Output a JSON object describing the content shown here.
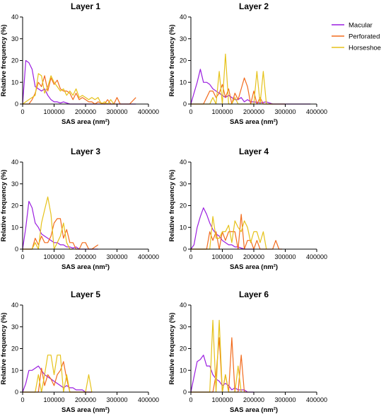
{
  "legend": [
    {
      "name": "Macular",
      "color": "#9B1FE0"
    },
    {
      "name": "Perforated",
      "color": "#F26B1D"
    },
    {
      "name": "Horseshoe",
      "color": "#E6C21A"
    }
  ],
  "chart_data": [
    {
      "type": "line",
      "title": "Layer 1",
      "xlabel": "SAS area (nm²)",
      "ylabel": "Relative frequency (%)",
      "xlim": [
        0,
        400000
      ],
      "ylim": [
        0,
        40
      ],
      "xticks": [
        "0",
        "100000",
        "200000",
        "300000",
        "400000"
      ],
      "yticks": [
        "0",
        "10",
        "20",
        "30",
        "40"
      ],
      "series": [
        {
          "name": "Macular",
          "x": [
            0,
            10000,
            20000,
            30000,
            40000,
            50000,
            60000,
            70000,
            80000,
            90000,
            100000,
            110000,
            120000,
            130000,
            140000,
            150000,
            160000,
            180000,
            200000,
            250000,
            300000,
            360000
          ],
          "y": [
            0,
            20,
            19,
            16,
            8,
            7,
            6,
            7,
            4,
            2,
            1,
            1,
            0.5,
            1,
            0.5,
            0,
            0,
            0,
            0,
            0,
            0,
            0
          ]
        },
        {
          "name": "Perforated",
          "x": [
            0,
            20000,
            30000,
            40000,
            50000,
            60000,
            70000,
            80000,
            90000,
            100000,
            110000,
            120000,
            130000,
            140000,
            150000,
            160000,
            170000,
            180000,
            190000,
            200000,
            210000,
            220000,
            230000,
            240000,
            260000,
            270000,
            280000,
            290000,
            300000,
            310000,
            320000,
            340000,
            360000
          ],
          "y": [
            0,
            0,
            2,
            5,
            10,
            8,
            13,
            6,
            12,
            9,
            11,
            7,
            6,
            6,
            5,
            2,
            5,
            2,
            3,
            2,
            1,
            1,
            0,
            1,
            0,
            2,
            0,
            0,
            3,
            0,
            0,
            0,
            3
          ]
        },
        {
          "name": "Horseshoe",
          "x": [
            0,
            20000,
            30000,
            40000,
            50000,
            60000,
            70000,
            80000,
            90000,
            100000,
            110000,
            120000,
            130000,
            140000,
            150000,
            160000,
            170000,
            180000,
            190000,
            200000,
            210000,
            220000,
            230000,
            240000,
            250000,
            260000,
            270000,
            280000,
            290000,
            300000
          ],
          "y": [
            0,
            2,
            3,
            4,
            14,
            13,
            5,
            8,
            13,
            10,
            8,
            6,
            7,
            4,
            6,
            4,
            7,
            3,
            4,
            3,
            2,
            3,
            2,
            3,
            0,
            1,
            0,
            2,
            0,
            0
          ]
        }
      ]
    },
    {
      "type": "line",
      "title": "Layer 2",
      "xlabel": "SAS area (nm²)",
      "ylabel": "Relative frequency (%)",
      "xlim": [
        0,
        400000
      ],
      "ylim": [
        0,
        40
      ],
      "xticks": [
        "0",
        "100000",
        "200000",
        "300000",
        "400000"
      ],
      "yticks": [
        "0",
        "10",
        "20",
        "30",
        "40"
      ],
      "series": [
        {
          "name": "Macular",
          "x": [
            0,
            10000,
            20000,
            30000,
            40000,
            50000,
            60000,
            70000,
            80000,
            90000,
            100000,
            110000,
            120000,
            130000,
            140000,
            150000,
            160000,
            170000,
            180000,
            190000,
            200000,
            220000,
            240000,
            260000,
            280000,
            300000,
            380000
          ],
          "y": [
            0,
            5,
            10,
            16,
            10,
            10,
            9,
            7,
            6,
            5,
            4,
            3,
            4,
            3,
            2,
            2,
            3,
            1,
            2,
            1,
            1,
            0.5,
            1,
            0,
            0,
            0,
            0
          ]
        },
        {
          "name": "Perforated",
          "x": [
            0,
            40000,
            50000,
            60000,
            70000,
            80000,
            90000,
            100000,
            110000,
            120000,
            130000,
            140000,
            150000,
            160000,
            170000,
            180000,
            190000,
            200000,
            210000,
            220000,
            230000,
            240000,
            260000,
            280000,
            300000
          ],
          "y": [
            0,
            0,
            3,
            6,
            6,
            3,
            5,
            9,
            3,
            7,
            0,
            5,
            2,
            7,
            12,
            8,
            0,
            6,
            0,
            3,
            0,
            0,
            0,
            0,
            0
          ]
        },
        {
          "name": "Horseshoe",
          "x": [
            0,
            60000,
            70000,
            80000,
            90000,
            100000,
            110000,
            120000,
            130000,
            140000,
            150000,
            160000,
            200000,
            210000,
            220000,
            230000,
            240000,
            250000,
            260000
          ],
          "y": [
            0,
            0,
            3,
            0,
            15,
            0,
            23,
            0,
            0,
            3,
            0,
            0,
            0,
            15,
            0,
            15,
            0,
            0,
            0
          ]
        }
      ]
    },
    {
      "type": "line",
      "title": "Layer 3",
      "xlabel": "SAS area (nm²)",
      "ylabel": "Relative frequency (%)",
      "xlim": [
        0,
        400000
      ],
      "ylim": [
        0,
        40
      ],
      "xticks": [
        "0",
        "100000",
        "200000",
        "300000",
        "400000"
      ],
      "yticks": [
        "0",
        "10",
        "20",
        "30",
        "40"
      ],
      "series": [
        {
          "name": "Macular",
          "x": [
            0,
            10000,
            20000,
            30000,
            40000,
            50000,
            60000,
            70000,
            80000,
            90000,
            100000,
            110000,
            120000,
            130000,
            140000,
            150000,
            160000,
            170000,
            180000,
            200000,
            220000,
            240000
          ],
          "y": [
            0,
            10,
            22,
            19,
            12,
            10,
            7,
            6,
            5,
            4,
            3,
            3,
            2,
            2,
            1,
            1,
            0.5,
            1,
            0,
            0,
            0,
            0
          ]
        },
        {
          "name": "Perforated",
          "x": [
            0,
            30000,
            40000,
            50000,
            60000,
            70000,
            80000,
            90000,
            100000,
            110000,
            120000,
            130000,
            140000,
            150000,
            160000,
            170000,
            180000,
            190000,
            200000,
            210000,
            220000,
            240000
          ],
          "y": [
            0,
            0,
            5,
            2,
            6,
            3,
            3,
            6,
            12,
            14,
            14,
            5,
            9,
            3,
            3,
            0,
            0,
            3,
            3,
            0,
            0,
            2
          ]
        },
        {
          "name": "Horseshoe",
          "x": [
            0,
            30000,
            40000,
            50000,
            60000,
            70000,
            80000,
            90000,
            100000,
            110000,
            120000,
            130000,
            140000,
            150000,
            160000
          ],
          "y": [
            0,
            0,
            3,
            0,
            12,
            18,
            24,
            16,
            0,
            3,
            6,
            12,
            3,
            0,
            0
          ]
        }
      ]
    },
    {
      "type": "line",
      "title": "Layer 4",
      "xlabel": "SAS area (nm²)",
      "ylabel": "Relative frequency (%)",
      "xlim": [
        0,
        400000
      ],
      "ylim": [
        0,
        40
      ],
      "xticks": [
        "0",
        "100000",
        "200000",
        "300000",
        "400000"
      ],
      "yticks": [
        "0",
        "10",
        "20",
        "30",
        "40"
      ],
      "series": [
        {
          "name": "Macular",
          "x": [
            0,
            10000,
            20000,
            30000,
            40000,
            50000,
            60000,
            70000,
            80000,
            90000,
            100000,
            110000,
            120000,
            130000,
            140000,
            150000,
            160000,
            170000,
            180000,
            200000
          ],
          "y": [
            0,
            2,
            10,
            15,
            19,
            16,
            12,
            9,
            7,
            6,
            4,
            3,
            2,
            2,
            1,
            1,
            0.5,
            0,
            0,
            0
          ]
        },
        {
          "name": "Perforated",
          "x": [
            0,
            50000,
            60000,
            70000,
            80000,
            90000,
            100000,
            110000,
            120000,
            130000,
            140000,
            150000,
            160000,
            170000,
            180000,
            190000,
            200000,
            210000,
            220000,
            230000,
            240000,
            260000,
            270000,
            280000,
            290000
          ],
          "y": [
            0,
            0,
            8,
            4,
            8,
            0,
            8,
            4,
            8,
            8,
            8,
            0,
            16,
            0,
            4,
            4,
            0,
            4,
            0,
            0,
            0,
            0,
            4,
            0,
            0
          ]
        },
        {
          "name": "Horseshoe",
          "x": [
            0,
            60000,
            70000,
            80000,
            90000,
            100000,
            110000,
            120000,
            130000,
            140000,
            150000,
            160000,
            170000,
            180000,
            190000,
            200000,
            210000,
            220000,
            230000,
            240000
          ],
          "y": [
            0,
            0,
            15,
            5,
            5,
            8,
            8,
            11,
            3,
            13,
            10,
            8,
            13,
            10,
            3,
            8,
            8,
            3,
            8,
            0
          ]
        }
      ]
    },
    {
      "type": "line",
      "title": "Layer 5",
      "xlabel": "SAS area (nm²)",
      "ylabel": "Relative frequency (%)",
      "xlim": [
        0,
        400000
      ],
      "ylim": [
        0,
        40
      ],
      "xticks": [
        "0",
        "100000",
        "200000",
        "300000",
        "400000"
      ],
      "yticks": [
        "0",
        "10",
        "20",
        "30",
        "40"
      ],
      "series": [
        {
          "name": "Macular",
          "x": [
            0,
            10000,
            20000,
            30000,
            40000,
            50000,
            60000,
            70000,
            80000,
            90000,
            100000,
            110000,
            120000,
            130000,
            140000,
            150000,
            160000,
            170000,
            180000,
            190000,
            200000,
            210000,
            220000
          ],
          "y": [
            0,
            4,
            10,
            10,
            11,
            12,
            10,
            8,
            7,
            6,
            5,
            4,
            3,
            2,
            3,
            2,
            2,
            1,
            1,
            1,
            0,
            0,
            0
          ]
        },
        {
          "name": "Perforated",
          "x": [
            0,
            30000,
            40000,
            50000,
            60000,
            70000,
            80000,
            90000,
            100000,
            110000,
            120000,
            130000,
            140000,
            150000,
            160000,
            170000,
            200000,
            210000,
            220000
          ],
          "y": [
            0,
            0,
            0,
            0,
            11,
            3,
            8,
            6,
            3,
            8,
            10,
            14,
            6,
            0,
            0,
            0,
            0,
            0,
            0
          ]
        },
        {
          "name": "Horseshoe",
          "x": [
            0,
            40000,
            50000,
            60000,
            70000,
            80000,
            90000,
            100000,
            110000,
            120000,
            130000,
            140000,
            150000,
            160000,
            200000,
            210000,
            220000
          ],
          "y": [
            0,
            0,
            8,
            0,
            8,
            17,
            17,
            8,
            17,
            17,
            0,
            8,
            0,
            0,
            0,
            8,
            0
          ]
        }
      ]
    },
    {
      "type": "line",
      "title": "Layer 6",
      "xlabel": "SAS area (nm²)",
      "ylabel": "Relative frequency (%)",
      "xlim": [
        0,
        400000
      ],
      "ylim": [
        0,
        40
      ],
      "xticks": [
        "0",
        "100000",
        "200000",
        "300000",
        "400000"
      ],
      "yticks": [
        "0",
        "10",
        "20",
        "30",
        "40"
      ],
      "series": [
        {
          "name": "Macular",
          "x": [
            0,
            10000,
            20000,
            30000,
            40000,
            50000,
            60000,
            70000,
            80000,
            90000,
            100000,
            110000,
            120000,
            130000,
            140000,
            150000,
            160000,
            170000,
            180000,
            190000,
            200000
          ],
          "y": [
            0,
            7,
            14,
            15,
            17,
            12,
            12,
            8,
            6,
            5,
            3,
            4,
            3,
            1,
            2,
            1,
            1,
            1,
            0,
            0,
            0
          ]
        },
        {
          "name": "Perforated",
          "x": [
            0,
            70000,
            80000,
            90000,
            100000,
            110000,
            120000,
            130000,
            140000,
            150000,
            160000,
            170000,
            180000
          ],
          "y": [
            0,
            0,
            8,
            25,
            0,
            8,
            0,
            25,
            0,
            0,
            17,
            0,
            0
          ]
        },
        {
          "name": "Horseshoe",
          "x": [
            0,
            60000,
            70000,
            80000,
            90000,
            100000,
            110000,
            120000,
            130000,
            140000,
            150000,
            160000
          ],
          "y": [
            0,
            0,
            33,
            0,
            33,
            0,
            8,
            0,
            0,
            0,
            12,
            0
          ]
        }
      ]
    }
  ]
}
